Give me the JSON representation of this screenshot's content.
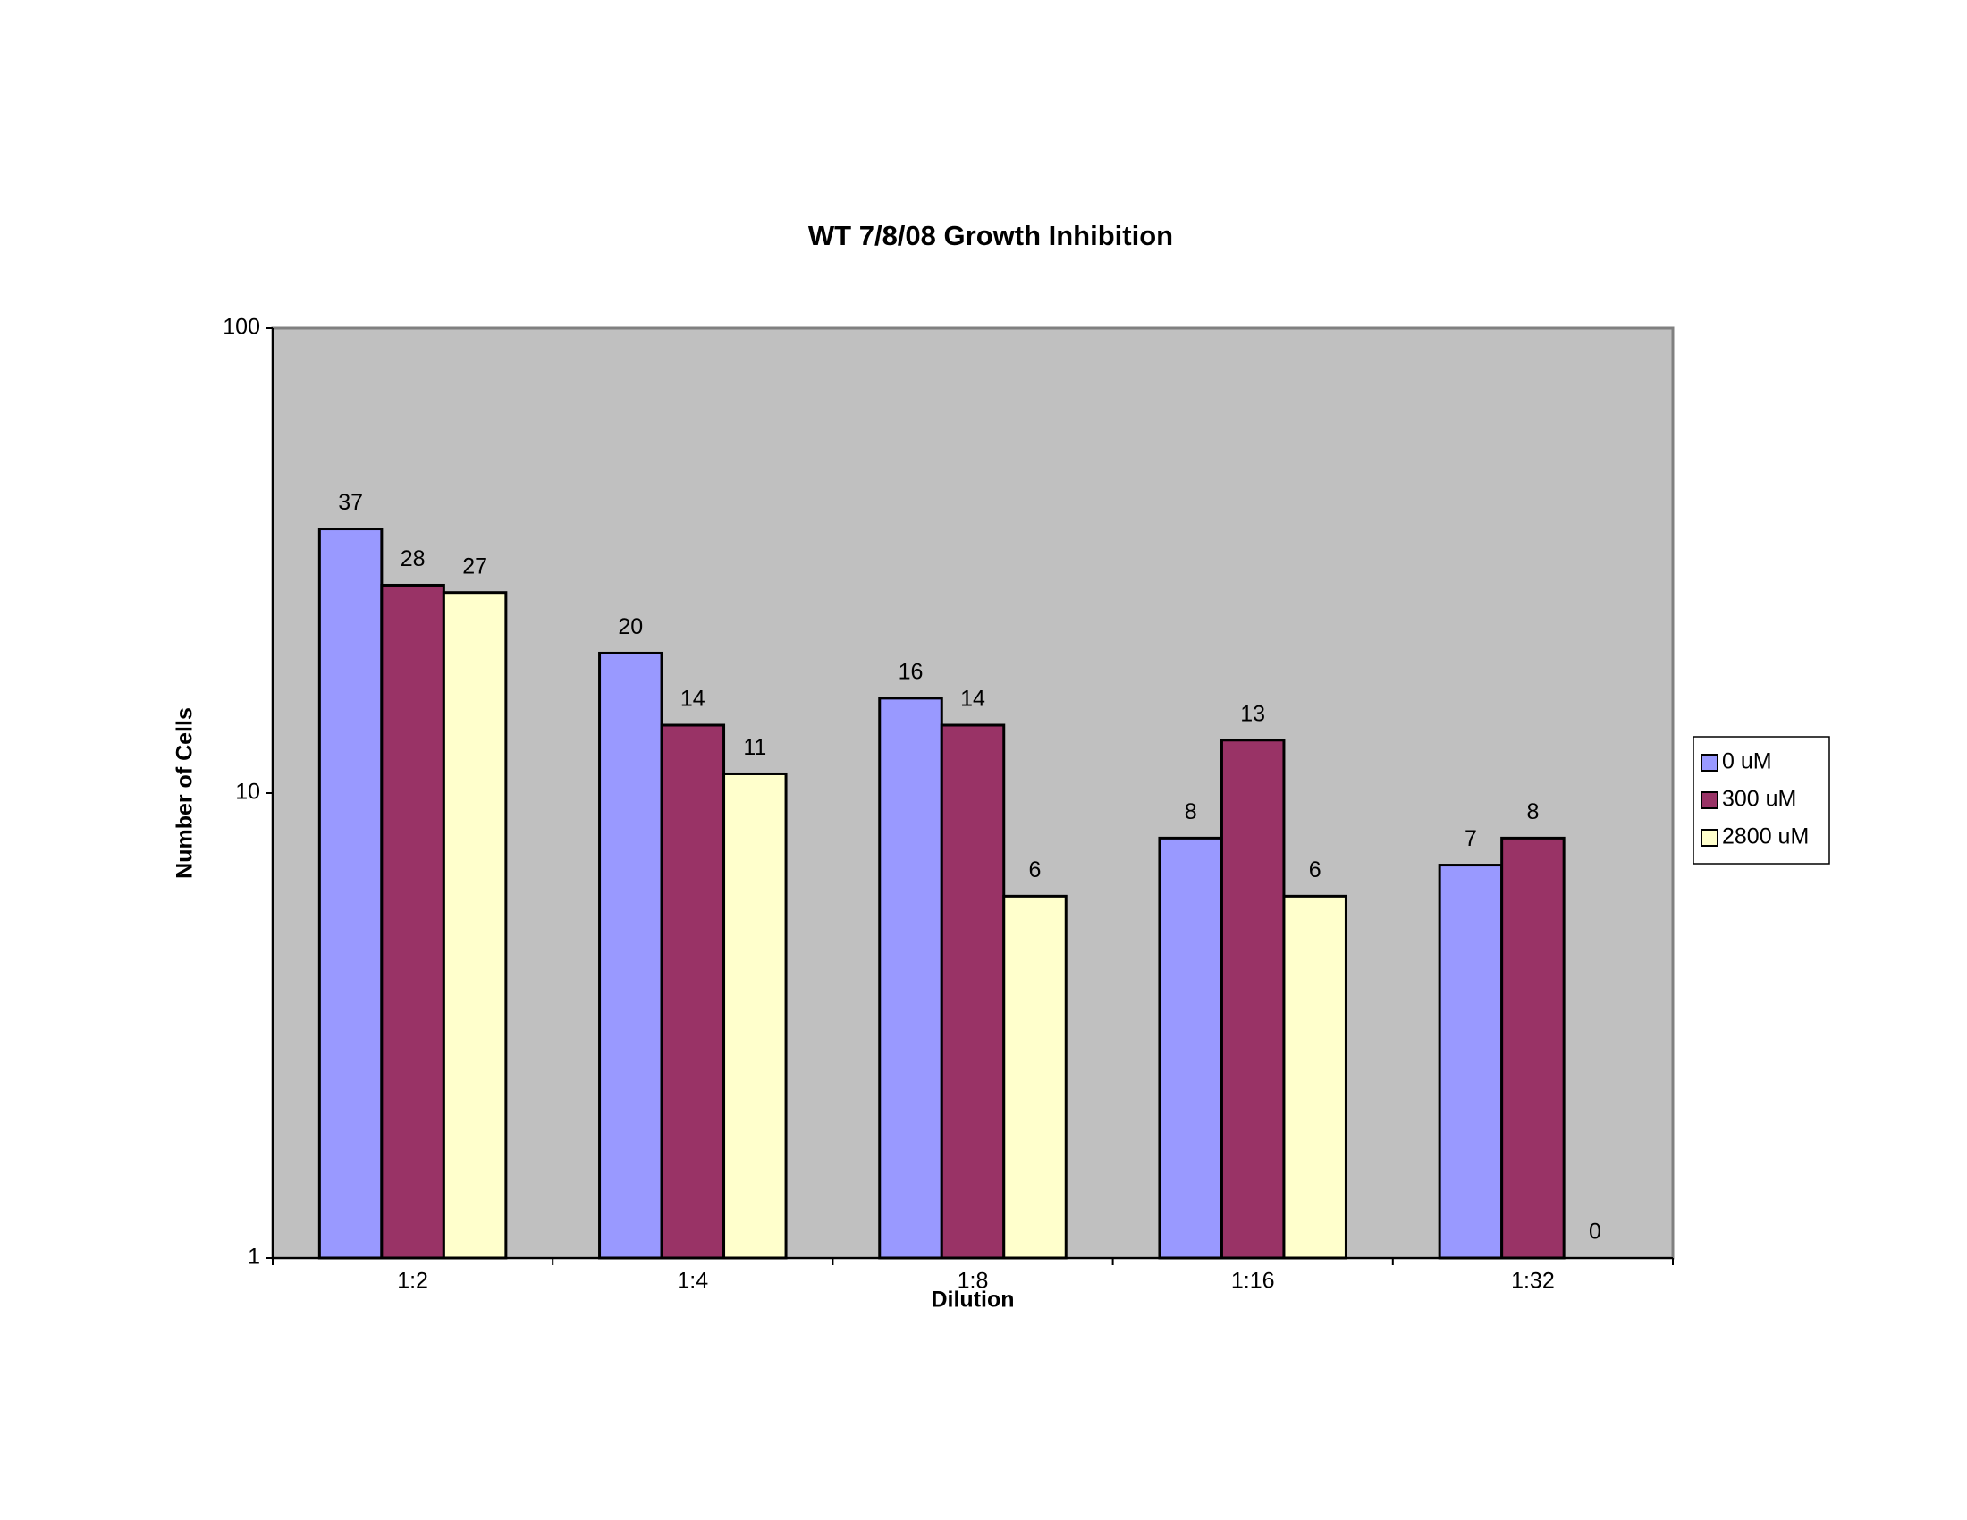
{
  "chart_data": {
    "type": "bar",
    "title": "WT 7/8/08 Growth Inhibition",
    "x_label": "Dilution",
    "y_label": "Number of Cells",
    "categories": [
      "1:2",
      "1:4",
      "1:8",
      "1:16",
      "1:32"
    ],
    "series": [
      {
        "name": "0 uM",
        "color": "#9999ff",
        "values": [
          37,
          20,
          16,
          8,
          7
        ]
      },
      {
        "name": "300 uM",
        "color": "#993366",
        "values": [
          28,
          14,
          14,
          13,
          8
        ]
      },
      {
        "name": "2800 uM",
        "color": "#ffffcc",
        "values": [
          27,
          11,
          6,
          6,
          0
        ]
      }
    ],
    "log_scale": true,
    "ylim": [
      1,
      100
    ],
    "yticks": [
      1,
      10,
      100
    ],
    "plot_background": "#c0c0c0",
    "legend": "right",
    "data_labels": true
  }
}
